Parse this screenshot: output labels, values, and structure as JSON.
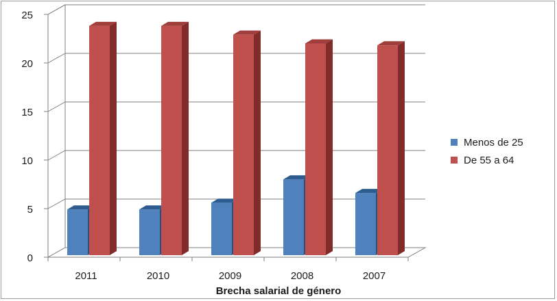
{
  "chart_data": {
    "type": "bar",
    "style": "3d-clustered-column",
    "categories": [
      "2011",
      "2010",
      "2009",
      "2008",
      "2007"
    ],
    "series": [
      {
        "name": "Menos de 25",
        "values": [
          4.7,
          4.7,
          5.4,
          7.8,
          6.4
        ],
        "color": "#4F81BD",
        "top_color": "#2E5C8F",
        "side_color": "#2B4F7A"
      },
      {
        "name": "De 55 a 64",
        "values": [
          23.6,
          23.6,
          22.7,
          21.8,
          21.6
        ],
        "color": "#C0504D",
        "top_color": "#A03E3B",
        "side_color": "#7F2C2A"
      }
    ],
    "title": "",
    "xlabel": "Brecha salarial de género",
    "ylabel": "",
    "ylim": [
      0,
      25
    ],
    "yticks": [
      "0",
      "5",
      "10",
      "15",
      "20",
      "25"
    ],
    "grid": true,
    "legend_position": "right"
  }
}
